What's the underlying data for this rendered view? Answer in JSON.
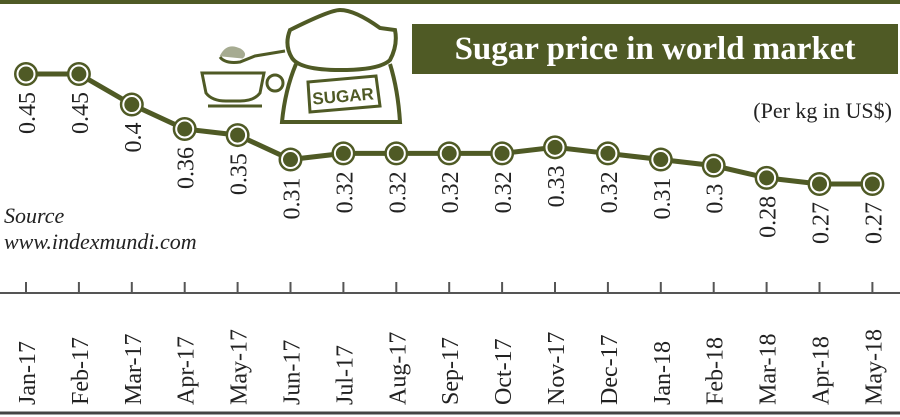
{
  "chart_data": {
    "type": "line",
    "title": "Sugar price in world market",
    "subtitle": "(Per kg in US$)",
    "source_label": "Source",
    "source_url": "www.indexmundi.com",
    "categories": [
      "Jan-17",
      "Feb-17",
      "Mar-17",
      "Apr-17",
      "May-17",
      "Jun-17",
      "Jul-17",
      "Aug-17",
      "Sep-17",
      "Oct-17",
      "Nov-17",
      "Dec-17",
      "Jan-18",
      "Feb-18",
      "Mar-18",
      "Apr-18",
      "May-18"
    ],
    "values": [
      0.45,
      0.45,
      0.4,
      0.36,
      0.35,
      0.31,
      0.32,
      0.32,
      0.32,
      0.32,
      0.33,
      0.32,
      0.31,
      0.3,
      0.28,
      0.27,
      0.27
    ],
    "data_labels": [
      "0.45",
      "0.45",
      "0.4",
      "0.36",
      "0.35",
      "0.31",
      "0.32",
      "0.32",
      "0.32",
      "0.32",
      "0.33",
      "0.32",
      "0.31",
      "0.3",
      "0.28",
      "0.27",
      "0.27"
    ],
    "grid": false,
    "colors": {
      "accent": "#4f5a25",
      "marker_fill": "#4f5a25",
      "marker_ring": "#ffffff"
    },
    "illustration": {
      "bag_label": "SUGAR",
      "icons": [
        "sugar-bag-icon",
        "teacup-icon",
        "spoon-icon"
      ]
    }
  }
}
